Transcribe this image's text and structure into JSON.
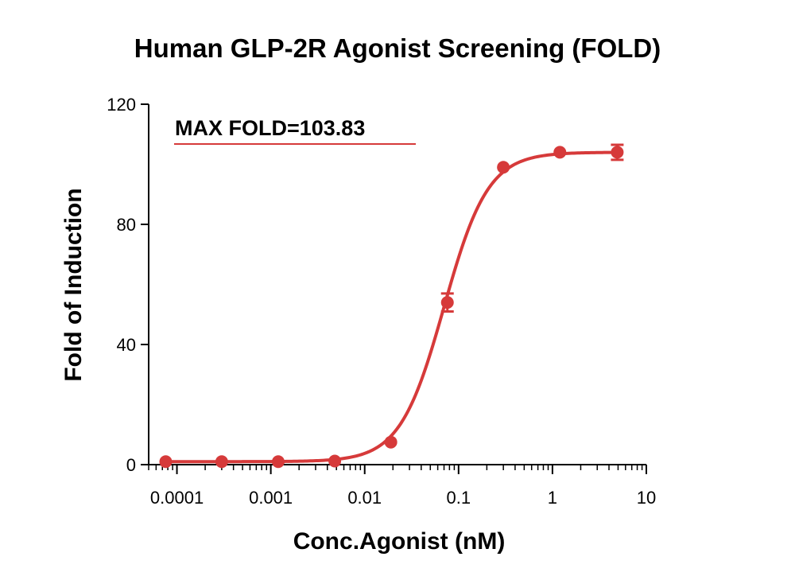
{
  "chart_data": {
    "type": "scatter",
    "title": "Human GLP-2R Agonist Screening (FOLD)",
    "xlabel": "Conc.Agonist (nM)",
    "ylabel": "Fold of Induction",
    "xscale": "log",
    "xlim": [
      5e-05,
      10
    ],
    "ylim": [
      0,
      120
    ],
    "xticks": [
      0.0001,
      0.001,
      0.01,
      0.1,
      1,
      10
    ],
    "xtick_labels": [
      "0.0001",
      "0.001",
      "0.01",
      "0.1",
      "1",
      "10"
    ],
    "yticks": [
      0,
      40,
      80,
      120
    ],
    "ytick_labels": [
      "0",
      "40",
      "80",
      "120"
    ],
    "grid": false,
    "color": "#d63a3a",
    "series": [
      {
        "x": [
          7.6e-05,
          0.0003,
          0.0012,
          0.0048,
          0.019,
          0.076,
          0.3,
          1.2,
          4.9
        ],
        "y": [
          1.0,
          1.0,
          1.0,
          1.2,
          7.5,
          54.0,
          99.0,
          104.0,
          104.0
        ],
        "err": [
          0,
          0,
          0,
          0,
          0,
          3.0,
          0,
          0,
          2.5
        ]
      }
    ],
    "fit": {
      "bottom": 1.0,
      "top": 104.0,
      "ec50": 0.07,
      "hill": 1.85
    },
    "annotation": "MAX FOLD=103.83"
  }
}
